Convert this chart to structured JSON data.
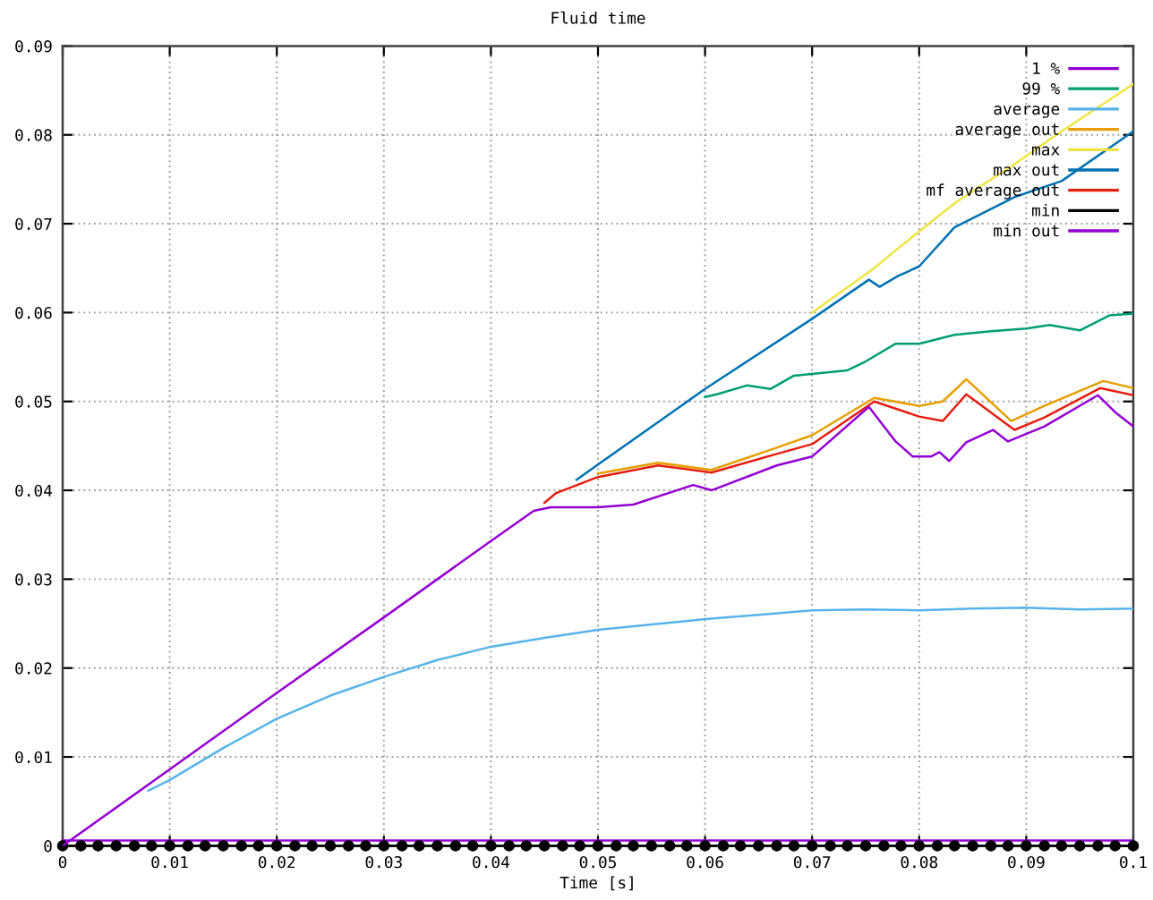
{
  "chart_data": {
    "type": "line",
    "title": "Fluid time",
    "xlabel": "Time [s]",
    "xlim": [
      0,
      0.1
    ],
    "xticks": [
      0,
      0.01,
      0.02,
      0.03,
      0.04,
      0.05,
      0.06,
      0.07,
      0.08,
      0.09,
      0.1
    ],
    "ylim": [
      0,
      0.09
    ],
    "yticks": [
      0,
      0.01,
      0.02,
      0.03,
      0.04,
      0.05,
      0.06,
      0.07,
      0.08,
      0.09
    ],
    "grid": true,
    "legend": "top right",
    "series": [
      {
        "name": "1 %",
        "color": "#9400d3",
        "x": [
          0,
          0.02,
          0.04,
          0.06,
          0.08,
          0.1
        ],
        "values": [
          0.0006,
          0.0006,
          0.0006,
          0.0006,
          0.0006,
          0.0006
        ]
      },
      {
        "name": "99 %",
        "color": "#009e73",
        "x": [
          0.06,
          0.0611,
          0.0639,
          0.0661,
          0.0683,
          0.0733,
          0.075,
          0.0778,
          0.08,
          0.0833,
          0.0867,
          0.09,
          0.0922,
          0.095,
          0.0978,
          0.1
        ],
        "values": [
          0.0505,
          0.0508,
          0.0518,
          0.0514,
          0.0529,
          0.0535,
          0.0545,
          0.0565,
          0.0565,
          0.0575,
          0.0579,
          0.0582,
          0.0586,
          0.058,
          0.0597,
          0.0599
        ]
      },
      {
        "name": "average",
        "color": "#56b4e9",
        "x": [
          0.008,
          0.01,
          0.015,
          0.02,
          0.025,
          0.03,
          0.035,
          0.04,
          0.045,
          0.05,
          0.055,
          0.06,
          0.065,
          0.07,
          0.075,
          0.08,
          0.085,
          0.09,
          0.095,
          0.1
        ],
        "values": [
          0.0062,
          0.0074,
          0.011,
          0.0143,
          0.0169,
          0.019,
          0.0209,
          0.0224,
          0.0234,
          0.0243,
          0.0249,
          0.0255,
          0.026,
          0.0265,
          0.0266,
          0.0265,
          0.0267,
          0.0268,
          0.0266,
          0.0267
        ]
      },
      {
        "name": "average out",
        "color": "#e69f00",
        "x": [
          0.05,
          0.0556,
          0.0606,
          0.0667,
          0.07,
          0.0758,
          0.08,
          0.0822,
          0.0844,
          0.0886,
          0.0917,
          0.0972,
          0.1
        ],
        "values": [
          0.0419,
          0.0431,
          0.0423,
          0.0448,
          0.0462,
          0.0504,
          0.0495,
          0.05,
          0.0525,
          0.0478,
          0.0495,
          0.0523,
          0.0515
        ]
      },
      {
        "name": "max",
        "color": "#f0e442",
        "x": [
          0.07,
          0.0758,
          0.0778,
          0.0833,
          0.0889,
          0.0933,
          0.1
        ],
        "values": [
          0.06,
          0.065,
          0.067,
          0.0723,
          0.0767,
          0.0804,
          0.0857
        ]
      },
      {
        "name": "max out",
        "color": "#0072b2",
        "x": [
          0.048,
          0.05,
          0.06,
          0.07,
          0.0753,
          0.0763,
          0.078,
          0.08,
          0.0833,
          0.0889,
          0.0933,
          0.1
        ],
        "values": [
          0.0412,
          0.0429,
          0.0514,
          0.0593,
          0.0637,
          0.0629,
          0.0641,
          0.0652,
          0.0696,
          0.073,
          0.0748,
          0.0804
        ]
      },
      {
        "name": "mf average out",
        "color": "#e51e10",
        "x": [
          0.045,
          0.0461,
          0.05,
          0.0556,
          0.0606,
          0.0667,
          0.07,
          0.0758,
          0.08,
          0.0822,
          0.0844,
          0.0889,
          0.0917,
          0.0969,
          0.1
        ],
        "values": [
          0.0386,
          0.0397,
          0.0415,
          0.0428,
          0.042,
          0.0441,
          0.0452,
          0.05,
          0.0483,
          0.0478,
          0.0508,
          0.0468,
          0.0482,
          0.0515,
          0.0507
        ]
      },
      {
        "name": "min",
        "color": "#000000",
        "marker": "circle",
        "x": [
          0,
          0.0017,
          0.0033,
          0.005,
          0.0067,
          0.0083,
          0.01,
          0.0117,
          0.0133,
          0.015,
          0.0167,
          0.0183,
          0.02,
          0.0217,
          0.0233,
          0.025,
          0.0267,
          0.0283,
          0.03,
          0.0317,
          0.0333,
          0.035,
          0.0367,
          0.0383,
          0.04,
          0.0417,
          0.0433,
          0.045,
          0.0467,
          0.0483,
          0.05,
          0.0517,
          0.0533,
          0.055,
          0.0567,
          0.0583,
          0.06,
          0.0617,
          0.0633,
          0.065,
          0.0667,
          0.0683,
          0.07,
          0.0717,
          0.0733,
          0.075,
          0.0767,
          0.0783,
          0.08,
          0.0817,
          0.0833,
          0.085,
          0.0867,
          0.0883,
          0.09,
          0.0917,
          0.0933,
          0.095,
          0.0967,
          0.0983,
          0.1
        ],
        "values": [
          0,
          0,
          0,
          0,
          0,
          0,
          0,
          0,
          0,
          0,
          0,
          0,
          0,
          0,
          0,
          0,
          0,
          0,
          0,
          0,
          0,
          0,
          0,
          0,
          0,
          0,
          0,
          0,
          0,
          0,
          0,
          0,
          0,
          0,
          0,
          0,
          0,
          0,
          0,
          0,
          0,
          0,
          0,
          0,
          0,
          0,
          0,
          0,
          0,
          0,
          0,
          0,
          0,
          0,
          0,
          0,
          0,
          0,
          0,
          0,
          0
        ]
      },
      {
        "name": "min out",
        "color": "#9400d3",
        "x": [
          0,
          0.01,
          0.02,
          0.03,
          0.04,
          0.044,
          0.0456,
          0.05,
          0.0533,
          0.0589,
          0.0606,
          0.0667,
          0.07,
          0.0753,
          0.0778,
          0.0794,
          0.0811,
          0.0819,
          0.0828,
          0.0844,
          0.0869,
          0.0883,
          0.0917,
          0.0967,
          0.0983,
          0.1
        ],
        "values": [
          0,
          0.0086,
          0.0172,
          0.0257,
          0.0343,
          0.0377,
          0.0381,
          0.0381,
          0.0384,
          0.0406,
          0.04,
          0.0428,
          0.0438,
          0.0494,
          0.0455,
          0.0438,
          0.0438,
          0.0443,
          0.0433,
          0.0454,
          0.0468,
          0.0455,
          0.0472,
          0.0507,
          0.0488,
          0.0472
        ]
      }
    ]
  }
}
